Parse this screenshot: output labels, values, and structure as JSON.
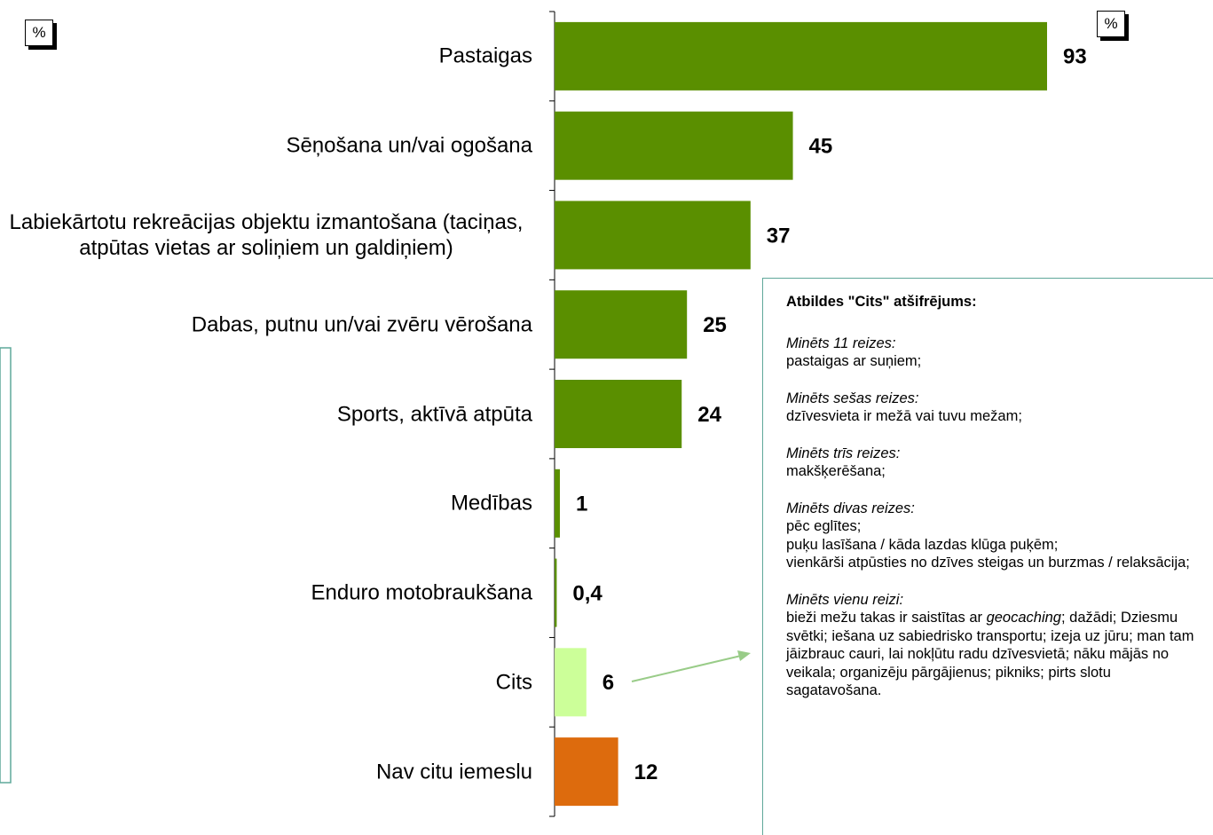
{
  "chart_data": {
    "type": "bar",
    "orientation": "horizontal",
    "unit_label": "%",
    "categories": [
      "Pastaigas",
      "Sēņošana un/vai ogošana",
      "Labiekārtotu rekreācijas objektu izmantošana (taciņas, atpūtas vietas ar soliņiem un galdiņiem)",
      "Dabas, putnu un/vai zvēru vērošana",
      "Sports, aktīvā atpūta",
      "Medības",
      "Enduro motobraukšana",
      "Cits",
      "Nav citu iemeslu"
    ],
    "values": [
      93,
      45,
      37,
      25,
      24,
      1,
      0.4,
      6,
      12
    ],
    "value_labels": [
      "93",
      "45",
      "37",
      "25",
      "24",
      "1",
      "0,4",
      "6",
      "12"
    ],
    "colors": [
      "#5a8f00",
      "#5a8f00",
      "#5a8f00",
      "#5a8f00",
      "#5a8f00",
      "#5a8f00",
      "#5a8f00",
      "#ccff99",
      "#dd6b0d"
    ],
    "annotation": {
      "title": "Atbildes \"Cits\" atšifrējums:",
      "groups": [
        {
          "heading": "Minēts 11 reizes:",
          "lines": [
            "pastaigas ar suņiem;"
          ]
        },
        {
          "heading": "Minēts sešas reizes:",
          "lines": [
            "dzīvesvieta ir mežā vai tuvu mežam;"
          ]
        },
        {
          "heading": "Minēts trīs reizes:",
          "lines": [
            "makšķerēšana;"
          ]
        },
        {
          "heading": "Minēts divas reizes:",
          "lines": [
            "pēc eglītes;",
            "puķu lasīšana / kāda lazdas klūga puķēm;",
            "vienkārši atpūsties no dzīves steigas un burzmas / relaksācija;"
          ]
        },
        {
          "heading": "Minēts vienu reizi:",
          "lines": [
            "bieži mežu takas ir saistītas ar ",
            "geocaching",
            "; dažādi; Dziesmu svētki; iešana uz sabiedrisko transportu; izeja uz jūru; man tam jāizbrauc cauri, lai nokļūtu radu dzīvesvietā; nāku mājās no veikala; organizēju pārgājienus; pikniks; pirts slotu sagatavošana."
          ]
        }
      ]
    }
  }
}
